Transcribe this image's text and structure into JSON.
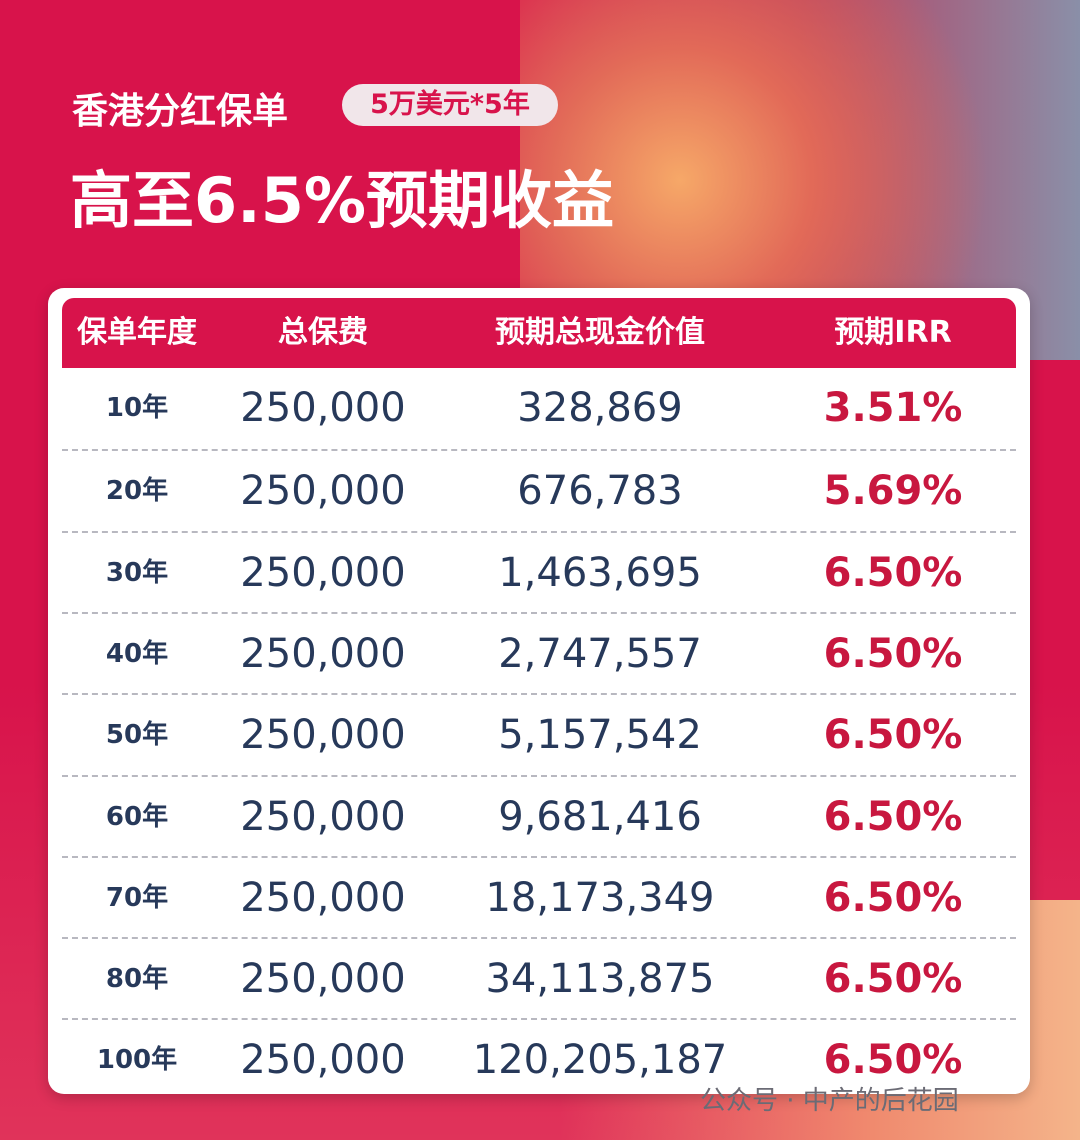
{
  "header": {
    "subtitle": "香港分红保单",
    "badge": "5万美元*5年",
    "title": "高至6.5%预期收益"
  },
  "table": {
    "columns": [
      "保单年度",
      "总保费",
      "预期总现金价值",
      "预期IRR"
    ],
    "rows": [
      [
        "10年",
        "250,000",
        "328,869",
        "3.51%"
      ],
      [
        "20年",
        "250,000",
        "676,783",
        "5.69%"
      ],
      [
        "30年",
        "250,000",
        "1,463,695",
        "6.50%"
      ],
      [
        "40年",
        "250,000",
        "2,747,557",
        "6.50%"
      ],
      [
        "50年",
        "250,000",
        "5,157,542",
        "6.50%"
      ],
      [
        "60年",
        "250,000",
        "9,681,416",
        "6.50%"
      ],
      [
        "70年",
        "250,000",
        "18,173,349",
        "6.50%"
      ],
      [
        "80年",
        "250,000",
        "34,113,875",
        "6.50%"
      ],
      [
        "100年",
        "250,000",
        "120,205,187",
        "6.50%"
      ]
    ]
  },
  "watermark": "公众号 · 中产的后花园"
}
